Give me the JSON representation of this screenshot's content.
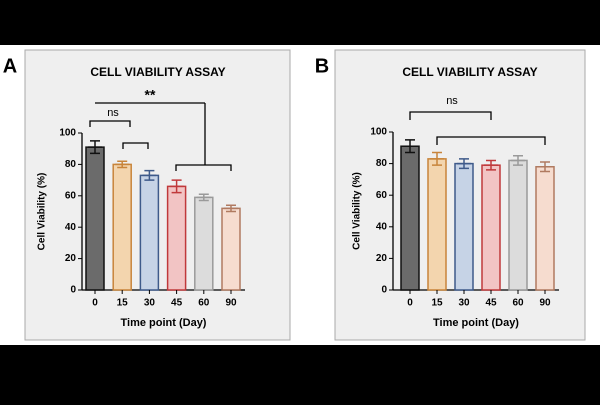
{
  "chart_data": [
    {
      "type": "bar",
      "label": "A",
      "title": "CELL VIABILITY ASSAY",
      "xlabel": "Time point (Day)",
      "ylabel": "Cell Viability (%)",
      "categories": [
        "0",
        "15",
        "30",
        "45",
        "60",
        "90"
      ],
      "values": [
        91,
        80,
        73,
        66,
        59,
        52
      ],
      "errors": [
        4,
        2,
        3,
        4,
        2,
        2
      ],
      "colors": [
        "#6b6b6b",
        "#f3d5ae",
        "#c6d3e6",
        "#f2c4c4",
        "#dcdcdc",
        "#f6dccf"
      ],
      "edge_colors": [
        "#111111",
        "#c8843a",
        "#3e5a8a",
        "#c0393b",
        "#9a9a9a",
        "#b07a60"
      ],
      "ylim": [
        0,
        100
      ],
      "yticks": [
        0,
        20,
        40,
        60,
        80,
        100
      ],
      "annotations": [
        "ns",
        "**"
      ]
    },
    {
      "type": "bar",
      "label": "B",
      "title": "CELL VIABILITY ASSAY",
      "xlabel": "Time point (Day)",
      "ylabel": "Cell Viability (%)",
      "categories": [
        "0",
        "15",
        "30",
        "45",
        "60",
        "90"
      ],
      "values": [
        91,
        83,
        80,
        79,
        82,
        78
      ],
      "errors": [
        4,
        4,
        3,
        3,
        3,
        3
      ],
      "colors": [
        "#6b6b6b",
        "#f3d5ae",
        "#c6d3e6",
        "#f2c4c4",
        "#dcdcdc",
        "#f6dccf"
      ],
      "edge_colors": [
        "#111111",
        "#c8843a",
        "#3e5a8a",
        "#c0393b",
        "#9a9a9a",
        "#b07a60"
      ],
      "ylim": [
        0,
        100
      ],
      "yticks": [
        0,
        20,
        40,
        60,
        80,
        100
      ],
      "annotations": [
        "ns"
      ]
    }
  ]
}
